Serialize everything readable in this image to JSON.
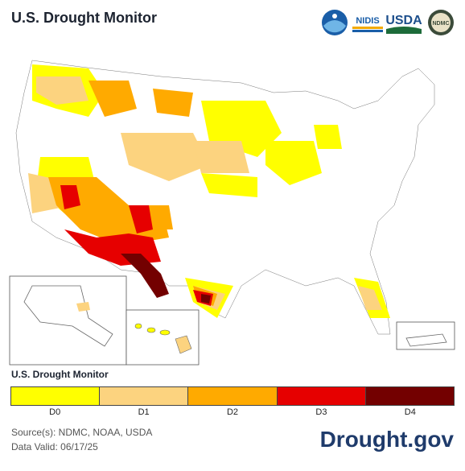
{
  "header": {
    "title": "U.S. Drought Monitor",
    "logos": [
      {
        "name": "noaa-logo",
        "text": "NOAA"
      },
      {
        "name": "nidis-logo",
        "text": "NIDIS"
      },
      {
        "name": "usda-logo",
        "text": "USDA"
      },
      {
        "name": "ndmc-logo",
        "text": "NDMC"
      }
    ]
  },
  "legend": {
    "title": "U.S. Drought Monitor",
    "categories": [
      {
        "label": "D0",
        "color": "#ffff00"
      },
      {
        "label": "D1",
        "color": "#fcd37f"
      },
      {
        "label": "D2",
        "color": "#ffaa00"
      },
      {
        "label": "D3",
        "color": "#e60000"
      },
      {
        "label": "D4",
        "color": "#730000"
      }
    ]
  },
  "footer": {
    "source": "Source(s): NDMC, NOAA, USDA",
    "valid": "Data Valid: 06/17/25",
    "site": "Drought.gov"
  }
}
